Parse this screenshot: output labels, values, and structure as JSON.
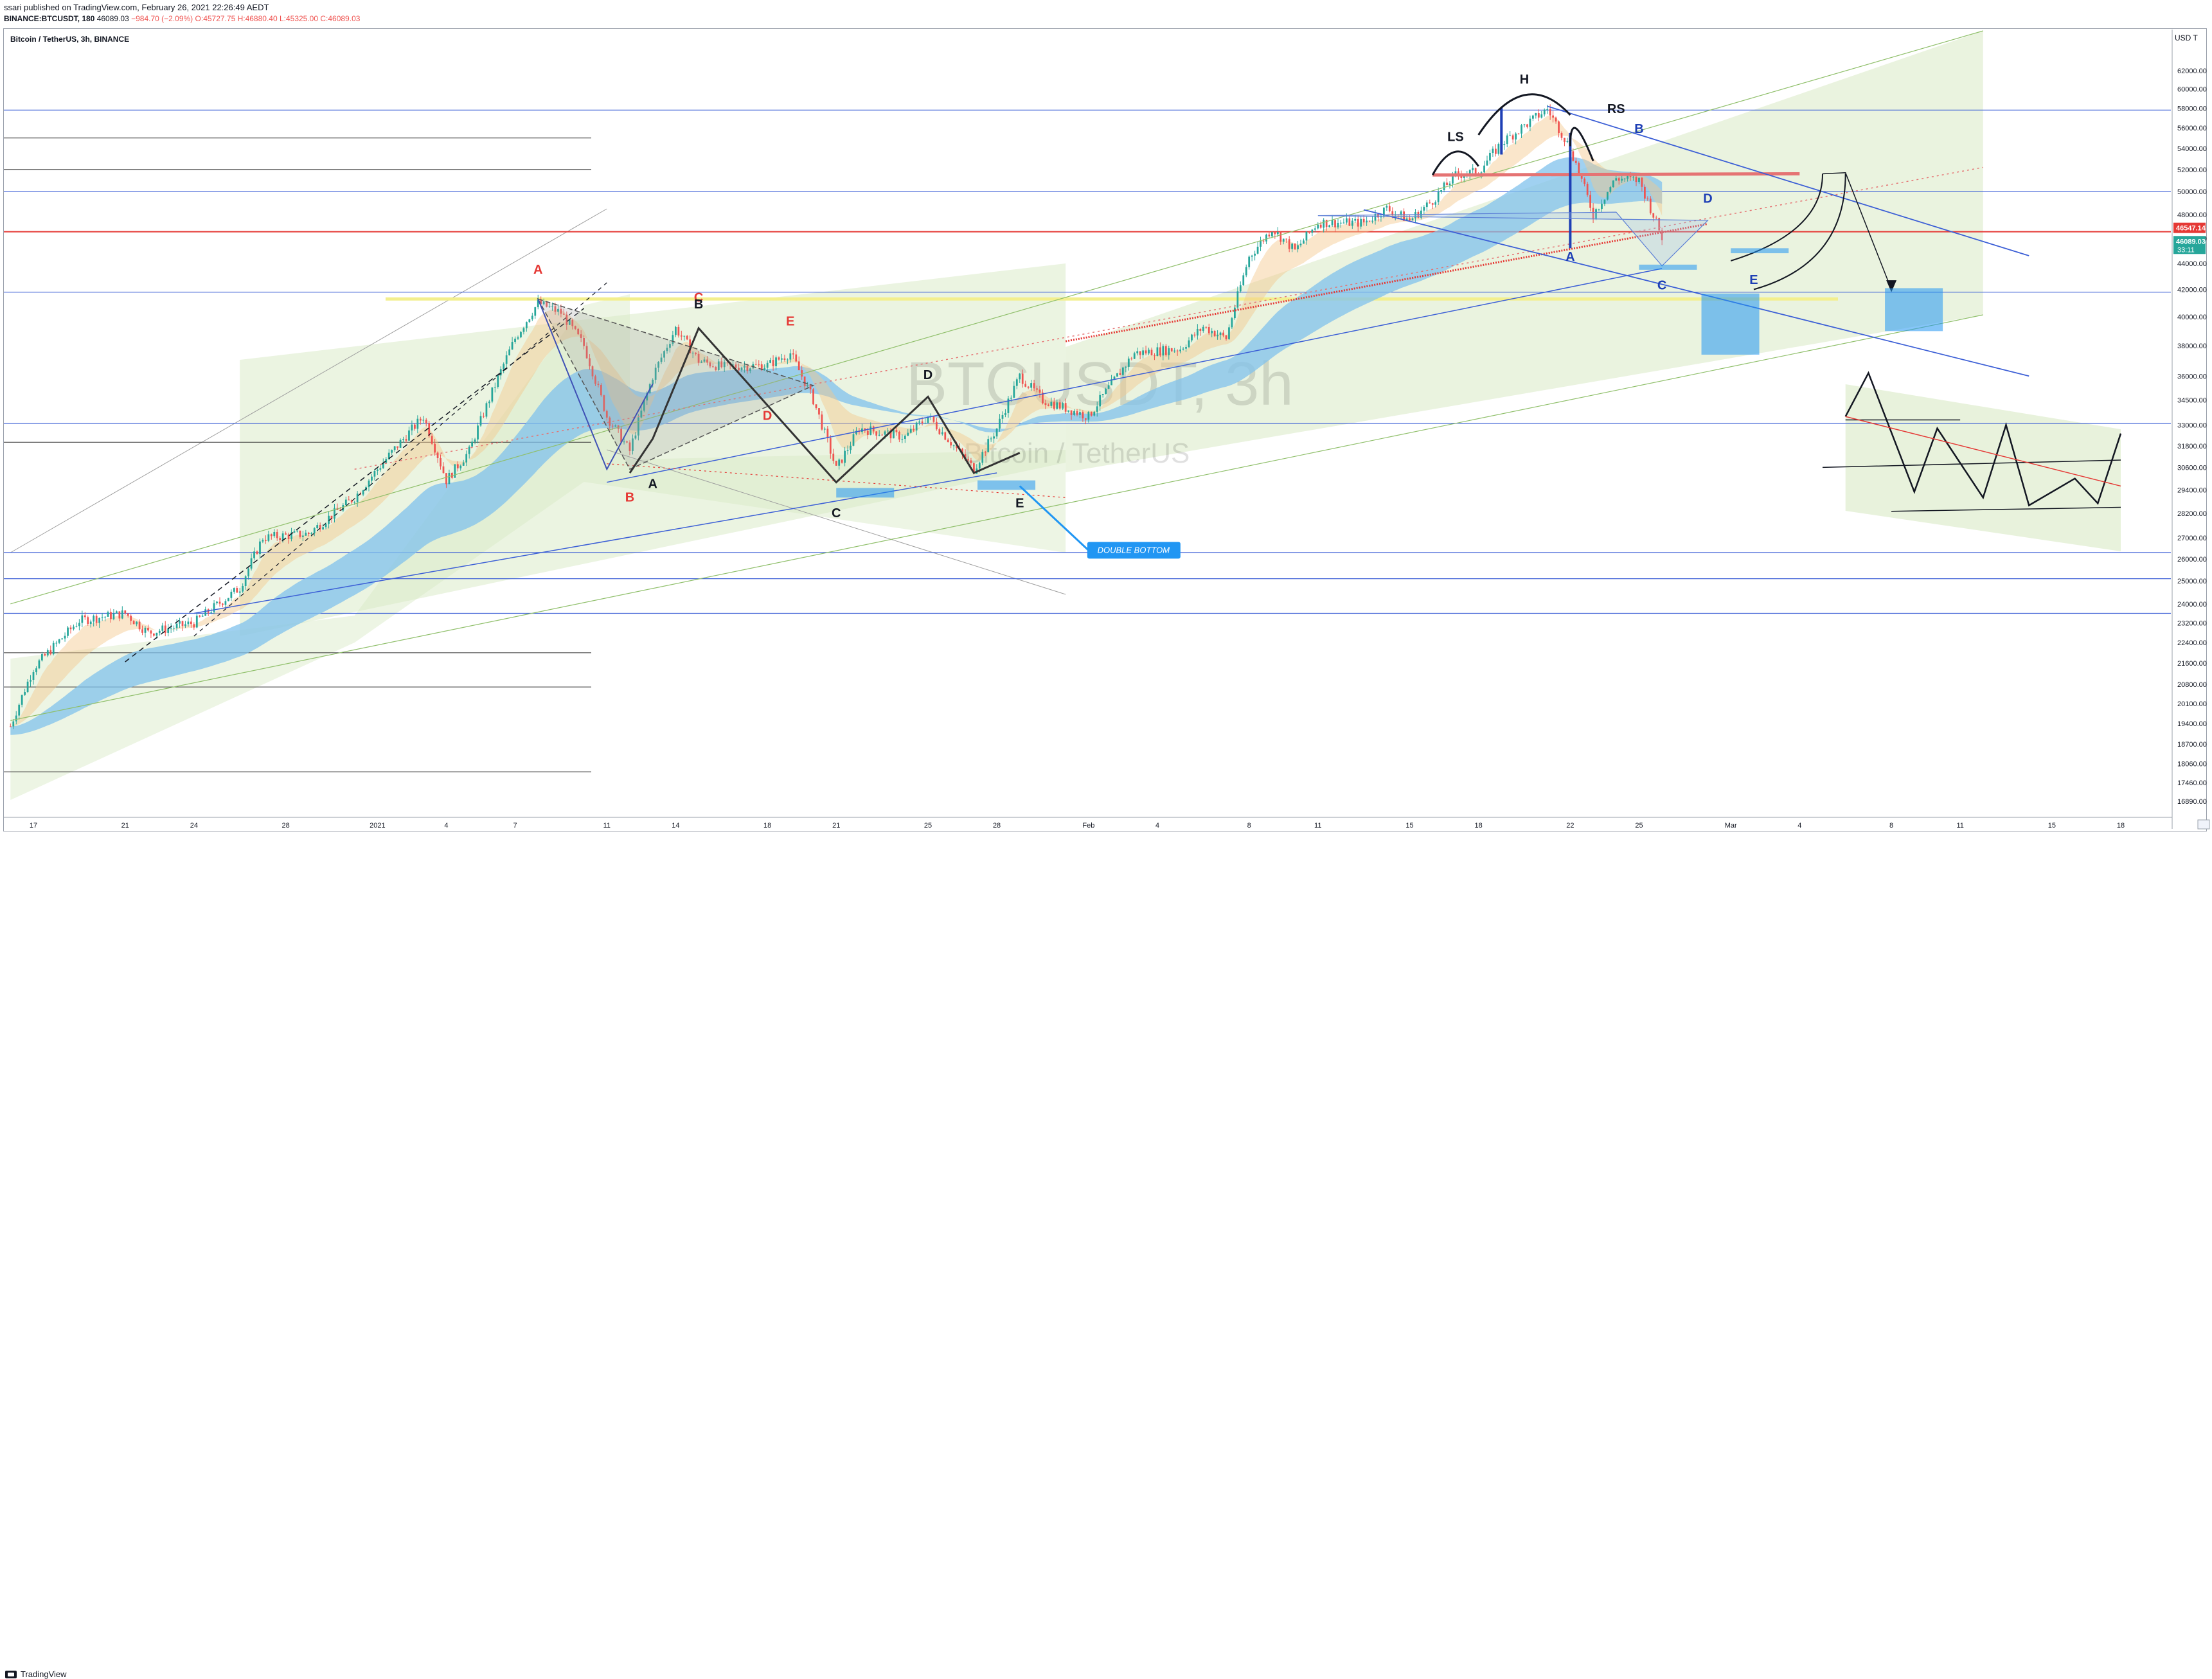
{
  "header": {
    "published": "ssari published on TradingView.com, February 26, 2021 22:26:49 AEDT",
    "symbol": "BINANCE:BTCUSDT, 180",
    "last": "46089.03",
    "change": "−984.70 (−2.09%)",
    "ohlc": "O:45727.75 H:46880.40 L:45325.00 C:46089.03"
  },
  "pane_title": "Bitcoin / TetherUS, 3h, BINANCE",
  "currency_label": "USD T",
  "watermark": {
    "main": "BTCUSDT, 3h",
    "sub": "Bitcoin / TetherUS"
  },
  "footer": {
    "brand": "TradingView"
  },
  "colors": {
    "up": "#26a69a",
    "down": "#ef5350",
    "channel_fill": "#d8e9c4",
    "blue_line": "#3c5fd6",
    "red_line": "#e53935",
    "yellow_line": "#f3ef8e",
    "ribbon": "#80c2ec",
    "callout": "#2196f3",
    "annotation_black": "#131722"
  },
  "chart_data": {
    "type": "candlestick",
    "title": "Bitcoin / TetherUS, 3h, BINANCE",
    "xlabel": "",
    "ylabel": "",
    "ylim": [
      16000,
      65000
    ],
    "y_ticks": [
      62000,
      60000,
      58000,
      56000,
      54000,
      52000,
      50000,
      48000,
      46000,
      44000,
      42000,
      40000,
      38000,
      36000,
      34500,
      33000,
      31800,
      30600,
      29400,
      28200,
      27000,
      26000,
      25000,
      24000,
      23200,
      22400,
      21600,
      20800,
      20100,
      19400,
      18700,
      18060,
      17460,
      16890
    ],
    "x_ticks": [
      "17",
      "21",
      "24",
      "28",
      "2021",
      "4",
      "7",
      "11",
      "14",
      "18",
      "21",
      "25",
      "28",
      "Feb",
      "4",
      "8",
      "11",
      "15",
      "18",
      "22",
      "25",
      "Mar",
      "4",
      "8",
      "11",
      "15",
      "18"
    ],
    "price_labels": [
      {
        "value": 46547.14,
        "color": "#e53935"
      },
      {
        "value": 46089.03,
        "color": "#26a69a"
      }
    ],
    "countdown": "33:11",
    "price_path": [
      [
        "Dec 16",
        19300
      ],
      [
        "Dec 17",
        21400
      ],
      [
        "Dec 19",
        23300
      ],
      [
        "Dec 21",
        23600
      ],
      [
        "Dec 22",
        22800
      ],
      [
        "Dec 24",
        23200
      ],
      [
        "Dec 26",
        24700
      ],
      [
        "Dec 27",
        27000
      ],
      [
        "Dec 29",
        27200
      ],
      [
        "Dec 31",
        29000
      ],
      [
        "Jan 2",
        32000
      ],
      [
        "Jan 3",
        33500
      ],
      [
        "Jan 4",
        29900
      ],
      [
        "Jan 5",
        31500
      ],
      [
        "Jan 6",
        35000
      ],
      [
        "Jan 7",
        38500
      ],
      [
        "Jan 8",
        41000
      ],
      [
        "Jan 9",
        40300
      ],
      [
        "Jan 10",
        38000
      ],
      [
        "Jan 11",
        33500
      ],
      [
        "Jan 12",
        31500
      ],
      [
        "Jan 13",
        36000
      ],
      [
        "Jan 14",
        39200
      ],
      [
        "Jan 15",
        37000
      ],
      [
        "Jan 16",
        36600
      ],
      [
        "Jan 18",
        36700
      ],
      [
        "Jan 19",
        37500
      ],
      [
        "Jan 20",
        34500
      ],
      [
        "Jan 21",
        30500
      ],
      [
        "Jan 22",
        32800
      ],
      [
        "Jan 24",
        32300
      ],
      [
        "Jan 25",
        33500
      ],
      [
        "Jan 27",
        30500
      ],
      [
        "Jan 28",
        32800
      ],
      [
        "Jan 29",
        36000
      ],
      [
        "Jan 30",
        34500
      ],
      [
        "Feb 1",
        33500
      ],
      [
        "Feb 2",
        35500
      ],
      [
        "Feb 3",
        37500
      ],
      [
        "Feb 5",
        37800
      ],
      [
        "Feb 6",
        39300
      ],
      [
        "Feb 7",
        38500
      ],
      [
        "Feb 8",
        44500
      ],
      [
        "Feb 9",
        46800
      ],
      [
        "Feb 10",
        45000
      ],
      [
        "Feb 11",
        47300
      ],
      [
        "Feb 13",
        47300
      ],
      [
        "Feb 14",
        48500
      ],
      [
        "Feb 15",
        47500
      ],
      [
        "Feb 16",
        49200
      ],
      [
        "Feb 17",
        51500
      ],
      [
        "Feb 18",
        51800
      ],
      [
        "Feb 19",
        54500
      ],
      [
        "Feb 20",
        56200
      ],
      [
        "Feb 21",
        57900
      ],
      [
        "Feb 22",
        54000
      ],
      [
        "Feb 23",
        48000
      ],
      [
        "Feb 24",
        51200
      ],
      [
        "Feb 25",
        51000
      ],
      [
        "Feb 26",
        46089
      ]
    ],
    "horizontal_lines": [
      {
        "value": 57800,
        "color": "#3c5fd6"
      },
      {
        "value": 50000,
        "color": "#3c5fd6"
      },
      {
        "value": 46547,
        "color": "#e53935"
      },
      {
        "value": 41800,
        "color": "#3c5fd6"
      },
      {
        "value": 33100,
        "color": "#3c5fd6"
      },
      {
        "value": 26300,
        "color": "#3c5fd6"
      },
      {
        "value": 25100,
        "color": "#3c5fd6"
      },
      {
        "value": 23600,
        "color": "#3c5fd6"
      }
    ],
    "annotations": [
      {
        "text": "A",
        "color": "#e53935"
      },
      {
        "text": "B",
        "color": "#e53935"
      },
      {
        "text": "C",
        "color": "#e53935"
      },
      {
        "text": "D",
        "color": "#e53935"
      },
      {
        "text": "E",
        "color": "#e53935"
      },
      {
        "text": "A",
        "color": "#131722"
      },
      {
        "text": "B",
        "color": "#131722"
      },
      {
        "text": "C",
        "color": "#131722"
      },
      {
        "text": "D",
        "color": "#131722"
      },
      {
        "text": "E",
        "color": "#131722"
      },
      {
        "text": "LS",
        "color": "#131722"
      },
      {
        "text": "H",
        "color": "#131722"
      },
      {
        "text": "RS",
        "color": "#131722"
      },
      {
        "text": "A",
        "color": "#1e3fb5"
      },
      {
        "text": "B",
        "color": "#1e3fb5"
      },
      {
        "text": "C",
        "color": "#1e3fb5"
      },
      {
        "text": "D",
        "color": "#1e3fb5"
      },
      {
        "text": "E",
        "color": "#1e3fb5"
      }
    ],
    "callout": "DOUBLE BOTTOM"
  }
}
